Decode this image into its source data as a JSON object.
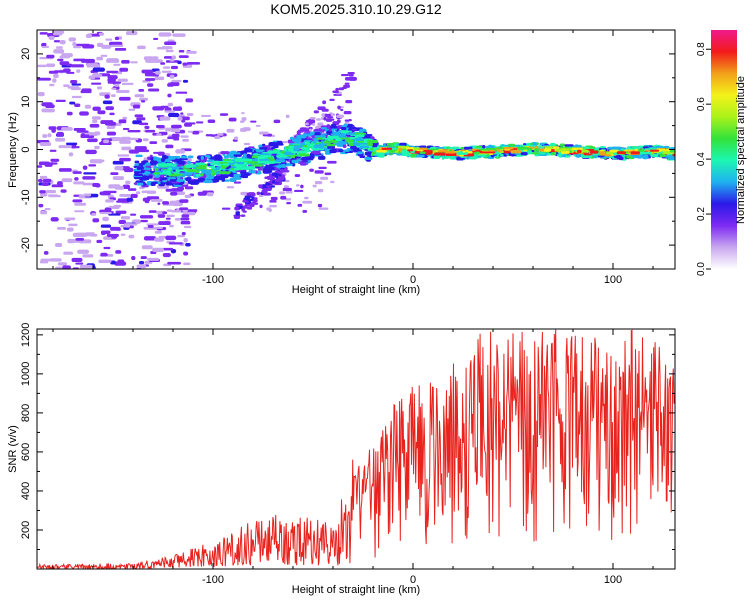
{
  "title": "KOM5.2025.310.10.29.G12",
  "colors": {
    "snr_line": "#e8221d",
    "frame": "#000000",
    "background": "#ffffff"
  },
  "chart_data": [
    {
      "type": "heatmap",
      "name": "spectrogram",
      "xlabel": "Height of straight line (km)",
      "ylabel": "Frequency (Hz)",
      "xlim": [
        -188,
        131
      ],
      "ylim": [
        -25,
        25
      ],
      "x_ticks": [
        -100,
        0,
        100
      ],
      "y_ticks": [
        -20,
        -10,
        0,
        10,
        20
      ],
      "colorbar": {
        "label": "Normalized spectral amplitude",
        "range": [
          0,
          0.87
        ],
        "ticks": [
          "0.0",
          "0.2",
          "0.4",
          "0.6",
          "0.8"
        ],
        "colormap": [
          "#ffffff",
          "#c9a7f0",
          "#7d2af2",
          "#2b19e8",
          "#1fb1f0",
          "#1cf7b2",
          "#33e23a",
          "#aaf21a",
          "#f4f21a",
          "#f2a01a",
          "#f21a1a",
          "#f01a8e"
        ]
      },
      "ridge": {
        "x": [
          -130,
          -110,
          -100,
          -90,
          -80,
          -70,
          -60,
          -50,
          -40,
          -30,
          -20,
          -10,
          0,
          20,
          40,
          60,
          80,
          100,
          120,
          131
        ],
        "y_hz": [
          -4,
          -4,
          -3.5,
          -3,
          -2,
          -1,
          0,
          1,
          3,
          2.5,
          0,
          0.5,
          0,
          -0.5,
          0,
          0.5,
          0,
          -0.5,
          0,
          -0.5
        ]
      }
    },
    {
      "type": "line",
      "name": "snr",
      "xlabel": "Height of straight line (km)",
      "ylabel": "SNR (v/v)",
      "xlim": [
        -188,
        131
      ],
      "ylim": [
        0,
        1230
      ],
      "x_ticks": [
        -100,
        0,
        100
      ],
      "y_ticks": [
        200,
        400,
        600,
        800,
        1000,
        1200
      ],
      "series": [
        {
          "name": "SNR",
          "envelope_x": [
            -188,
            -140,
            -120,
            -100,
            -80,
            -70,
            -60,
            -40,
            -30,
            -20,
            -10,
            0,
            10,
            20,
            30,
            40,
            60,
            80,
            100,
            120,
            131
          ],
          "envelope_max": [
            25,
            30,
            70,
            150,
            250,
            300,
            280,
            250,
            580,
            650,
            850,
            950,
            1000,
            1050,
            1200,
            1230,
            1230,
            1230,
            1230,
            1230,
            1050
          ],
          "envelope_min": [
            0,
            0,
            5,
            10,
            20,
            25,
            20,
            15,
            30,
            40,
            60,
            80,
            100,
            120,
            100,
            120,
            100,
            120,
            100,
            200,
            250
          ]
        }
      ]
    }
  ]
}
